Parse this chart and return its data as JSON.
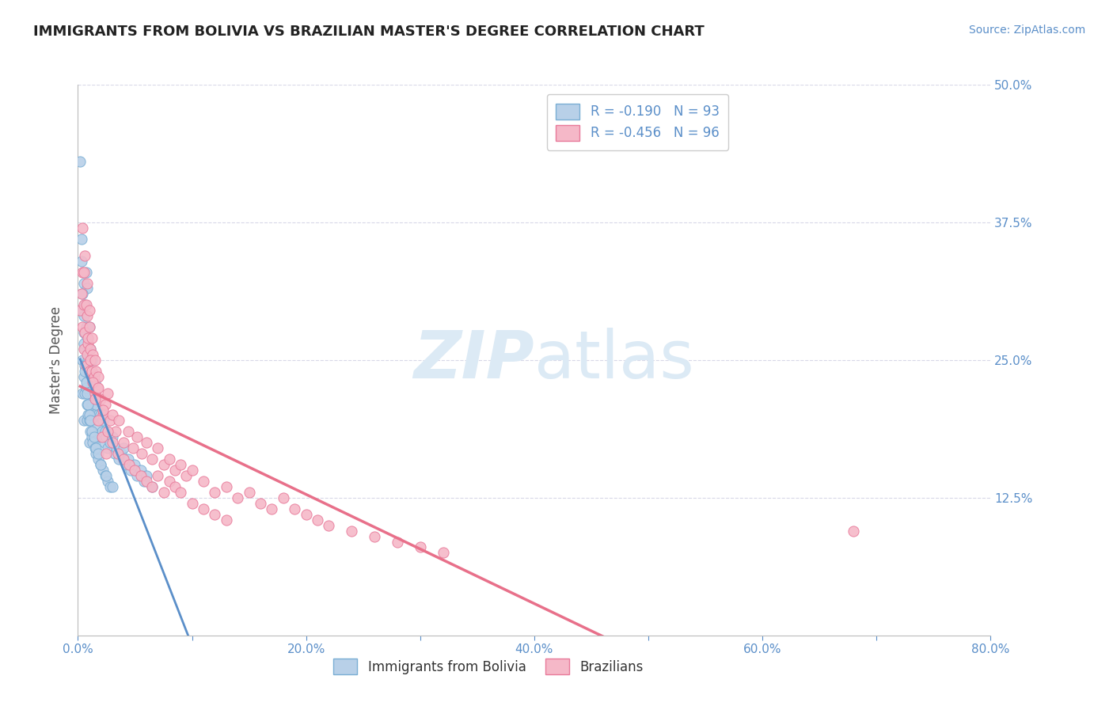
{
  "title": "IMMIGRANTS FROM BOLIVIA VS BRAZILIAN MASTER'S DEGREE CORRELATION CHART",
  "source": "Source: ZipAtlas.com",
  "ylabel": "Master's Degree",
  "legend_labels": [
    "Immigrants from Bolivia",
    "Brazilians"
  ],
  "legend_r": [
    "R = -0.190",
    "N = 93"
  ],
  "legend_r2": [
    "R = -0.456",
    "N = 96"
  ],
  "blue_color": "#b8d0e8",
  "pink_color": "#f5b8c8",
  "blue_edge_color": "#7aaed4",
  "pink_edge_color": "#e87a9a",
  "blue_line_color": "#5b8fc9",
  "pink_line_color": "#e8708a",
  "dashed_line_color": "#aac8e0",
  "grid_color": "#d8d8e8",
  "background_color": "#ffffff",
  "watermark_color": "#dceaf5",
  "title_color": "#222222",
  "axis_color": "#5b8fc9",
  "tick_color": "#888888",
  "xlim": [
    0.0,
    0.8
  ],
  "ylim": [
    0.0,
    0.5
  ],
  "xticks": [
    0.0,
    0.1,
    0.2,
    0.3,
    0.4,
    0.5,
    0.6,
    0.7,
    0.8
  ],
  "xtick_labels": [
    "0.0%",
    "",
    "20.0%",
    "",
    "40.0%",
    "",
    "60.0%",
    "",
    "80.0%"
  ],
  "yticks": [
    0.0,
    0.125,
    0.25,
    0.375,
    0.5
  ],
  "ytick_labels_right": [
    "",
    "12.5%",
    "25.0%",
    "37.5%",
    "50.0%"
  ],
  "blue_scatter_x": [
    0.002,
    0.003,
    0.003,
    0.004,
    0.004,
    0.005,
    0.005,
    0.005,
    0.005,
    0.006,
    0.006,
    0.006,
    0.007,
    0.007,
    0.007,
    0.008,
    0.008,
    0.008,
    0.008,
    0.009,
    0.009,
    0.01,
    0.01,
    0.01,
    0.01,
    0.011,
    0.011,
    0.012,
    0.012,
    0.013,
    0.014,
    0.015,
    0.015,
    0.016,
    0.017,
    0.018,
    0.019,
    0.02,
    0.021,
    0.022,
    0.023,
    0.024,
    0.025,
    0.026,
    0.028,
    0.03,
    0.032,
    0.034,
    0.036,
    0.038,
    0.04,
    0.042,
    0.044,
    0.046,
    0.05,
    0.052,
    0.055,
    0.058,
    0.06,
    0.065,
    0.003,
    0.004,
    0.005,
    0.005,
    0.006,
    0.007,
    0.008,
    0.009,
    0.01,
    0.011,
    0.012,
    0.013,
    0.015,
    0.016,
    0.018,
    0.02,
    0.022,
    0.024,
    0.026,
    0.028,
    0.006,
    0.007,
    0.008,
    0.009,
    0.01,
    0.011,
    0.012,
    0.014,
    0.016,
    0.018,
    0.02,
    0.025,
    0.03
  ],
  "blue_scatter_y": [
    0.43,
    0.36,
    0.295,
    0.25,
    0.22,
    0.32,
    0.275,
    0.235,
    0.195,
    0.3,
    0.26,
    0.22,
    0.33,
    0.28,
    0.24,
    0.315,
    0.27,
    0.23,
    0.195,
    0.25,
    0.21,
    0.28,
    0.24,
    0.2,
    0.175,
    0.26,
    0.22,
    0.25,
    0.21,
    0.22,
    0.2,
    0.23,
    0.195,
    0.21,
    0.19,
    0.2,
    0.18,
    0.2,
    0.185,
    0.195,
    0.175,
    0.185,
    0.18,
    0.17,
    0.175,
    0.18,
    0.165,
    0.17,
    0.16,
    0.165,
    0.17,
    0.155,
    0.16,
    0.15,
    0.155,
    0.145,
    0.15,
    0.14,
    0.145,
    0.135,
    0.34,
    0.31,
    0.29,
    0.265,
    0.245,
    0.225,
    0.21,
    0.2,
    0.195,
    0.185,
    0.18,
    0.175,
    0.17,
    0.165,
    0.16,
    0.155,
    0.15,
    0.145,
    0.14,
    0.135,
    0.24,
    0.23,
    0.22,
    0.21,
    0.2,
    0.195,
    0.185,
    0.18,
    0.17,
    0.165,
    0.155,
    0.145,
    0.135
  ],
  "pink_scatter_x": [
    0.002,
    0.003,
    0.004,
    0.004,
    0.005,
    0.005,
    0.006,
    0.007,
    0.008,
    0.008,
    0.009,
    0.01,
    0.01,
    0.011,
    0.012,
    0.013,
    0.014,
    0.015,
    0.016,
    0.017,
    0.018,
    0.02,
    0.022,
    0.024,
    0.026,
    0.028,
    0.03,
    0.033,
    0.036,
    0.04,
    0.044,
    0.048,
    0.052,
    0.056,
    0.06,
    0.065,
    0.07,
    0.075,
    0.08,
    0.085,
    0.09,
    0.095,
    0.1,
    0.11,
    0.12,
    0.13,
    0.14,
    0.15,
    0.16,
    0.17,
    0.18,
    0.19,
    0.2,
    0.21,
    0.22,
    0.24,
    0.26,
    0.28,
    0.3,
    0.32,
    0.68,
    0.005,
    0.007,
    0.009,
    0.011,
    0.013,
    0.015,
    0.018,
    0.021,
    0.025,
    0.004,
    0.006,
    0.008,
    0.01,
    0.012,
    0.015,
    0.018,
    0.022,
    0.026,
    0.03,
    0.035,
    0.04,
    0.045,
    0.05,
    0.055,
    0.06,
    0.065,
    0.07,
    0.075,
    0.08,
    0.085,
    0.09,
    0.1,
    0.11,
    0.12,
    0.13
  ],
  "pink_scatter_y": [
    0.295,
    0.31,
    0.28,
    0.33,
    0.26,
    0.3,
    0.275,
    0.245,
    0.29,
    0.255,
    0.265,
    0.24,
    0.28,
    0.26,
    0.24,
    0.255,
    0.235,
    0.22,
    0.24,
    0.225,
    0.235,
    0.215,
    0.2,
    0.21,
    0.22,
    0.195,
    0.2,
    0.185,
    0.195,
    0.175,
    0.185,
    0.17,
    0.18,
    0.165,
    0.175,
    0.16,
    0.17,
    0.155,
    0.16,
    0.15,
    0.155,
    0.145,
    0.15,
    0.14,
    0.13,
    0.135,
    0.125,
    0.13,
    0.12,
    0.115,
    0.125,
    0.115,
    0.11,
    0.105,
    0.1,
    0.095,
    0.09,
    0.085,
    0.08,
    0.075,
    0.095,
    0.33,
    0.3,
    0.27,
    0.25,
    0.23,
    0.215,
    0.195,
    0.18,
    0.165,
    0.37,
    0.345,
    0.32,
    0.295,
    0.27,
    0.25,
    0.225,
    0.205,
    0.185,
    0.175,
    0.165,
    0.16,
    0.155,
    0.15,
    0.145,
    0.14,
    0.135,
    0.145,
    0.13,
    0.14,
    0.135,
    0.13,
    0.12,
    0.115,
    0.11,
    0.105
  ]
}
